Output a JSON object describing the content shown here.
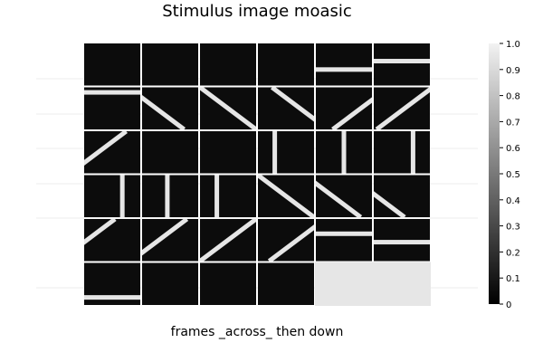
{
  "chart_data": {
    "type": "heatmap",
    "title": "Stimulus image moasic",
    "xlabel": "frames _across_ then down",
    "ylabel": "",
    "grid": {
      "rows": 6,
      "cols": 6
    },
    "colormap": "grayscale",
    "colorbar": {
      "min": 0,
      "max": 1,
      "ticks": [
        "0",
        "0.1",
        "0.2",
        "0.3",
        "0.4",
        "0.5",
        "0.6",
        "0.7",
        "0.8",
        "0.9",
        "1.0"
      ]
    },
    "frames": [
      {
        "index": 1,
        "row": 1,
        "col": 1,
        "stimulus": "blank"
      },
      {
        "index": 2,
        "row": 1,
        "col": 2,
        "stimulus": "blank"
      },
      {
        "index": 3,
        "row": 1,
        "col": 3,
        "stimulus": "blank"
      },
      {
        "index": 4,
        "row": 1,
        "col": 4,
        "stimulus": "blank"
      },
      {
        "index": 5,
        "row": 1,
        "col": 5,
        "stimulus": "horizontal-bar",
        "position": 0.62
      },
      {
        "index": 6,
        "row": 1,
        "col": 6,
        "stimulus": "horizontal-bar",
        "position": 0.42
      },
      {
        "index": 7,
        "row": 2,
        "col": 1,
        "stimulus": "horizontal-bar",
        "position": 0.12
      },
      {
        "index": 8,
        "row": 2,
        "col": 2,
        "stimulus": "diagonal-down",
        "offset": -0.25
      },
      {
        "index": 9,
        "row": 2,
        "col": 3,
        "stimulus": "diagonal-down",
        "offset": 0.0
      },
      {
        "index": 10,
        "row": 2,
        "col": 4,
        "stimulus": "diagonal-down",
        "offset": 0.25
      },
      {
        "index": 11,
        "row": 2,
        "col": 5,
        "stimulus": "diagonal-up",
        "offset": 0.3
      },
      {
        "index": 12,
        "row": 2,
        "col": 6,
        "stimulus": "diagonal-up",
        "offset": 0.05
      },
      {
        "index": 13,
        "row": 3,
        "col": 1,
        "stimulus": "diagonal-up",
        "offset": -0.25
      },
      {
        "index": 14,
        "row": 3,
        "col": 2,
        "stimulus": "blank"
      },
      {
        "index": 15,
        "row": 3,
        "col": 3,
        "stimulus": "blank"
      },
      {
        "index": 16,
        "row": 3,
        "col": 4,
        "stimulus": "vertical-bar",
        "position": 0.3
      },
      {
        "index": 17,
        "row": 3,
        "col": 5,
        "stimulus": "vertical-bar",
        "position": 0.5
      },
      {
        "index": 18,
        "row": 3,
        "col": 6,
        "stimulus": "vertical-bar",
        "position": 0.7
      },
      {
        "index": 19,
        "row": 4,
        "col": 1,
        "stimulus": "vertical-bar",
        "position": 0.68
      },
      {
        "index": 20,
        "row": 4,
        "col": 2,
        "stimulus": "vertical-bar",
        "position": 0.45
      },
      {
        "index": 21,
        "row": 4,
        "col": 3,
        "stimulus": "vertical-bar",
        "position": 0.3
      },
      {
        "index": 22,
        "row": 4,
        "col": 4,
        "stimulus": "diagonal-down",
        "offset": 0.0
      },
      {
        "index": 23,
        "row": 4,
        "col": 5,
        "stimulus": "diagonal-down",
        "offset": -0.2
      },
      {
        "index": 24,
        "row": 4,
        "col": 6,
        "stimulus": "diagonal-down",
        "offset": -0.45
      },
      {
        "index": 25,
        "row": 5,
        "col": 1,
        "stimulus": "diagonal-up",
        "offset": -0.45
      },
      {
        "index": 26,
        "row": 5,
        "col": 2,
        "stimulus": "diagonal-up",
        "offset": -0.2
      },
      {
        "index": 27,
        "row": 5,
        "col": 3,
        "stimulus": "diagonal-up",
        "offset": 0.0
      },
      {
        "index": 28,
        "row": 5,
        "col": 4,
        "stimulus": "diagonal-up",
        "offset": 0.2
      },
      {
        "index": 29,
        "row": 5,
        "col": 5,
        "stimulus": "horizontal-bar",
        "position": 0.35
      },
      {
        "index": 30,
        "row": 5,
        "col": 6,
        "stimulus": "horizontal-bar",
        "position": 0.55
      },
      {
        "index": 31,
        "row": 6,
        "col": 1,
        "stimulus": "horizontal-bar",
        "position": 0.82
      },
      {
        "index": 32,
        "row": 6,
        "col": 2,
        "stimulus": "blank"
      },
      {
        "index": 33,
        "row": 6,
        "col": 3,
        "stimulus": "blank"
      },
      {
        "index": 34,
        "row": 6,
        "col": 4,
        "stimulus": "blank"
      },
      {
        "index": 35,
        "row": 6,
        "col": 5,
        "stimulus": "empty"
      },
      {
        "index": 36,
        "row": 6,
        "col": 6,
        "stimulus": "empty"
      }
    ],
    "values": {
      "background": 0.05,
      "bar": 0.95,
      "empty": 0.95
    }
  }
}
